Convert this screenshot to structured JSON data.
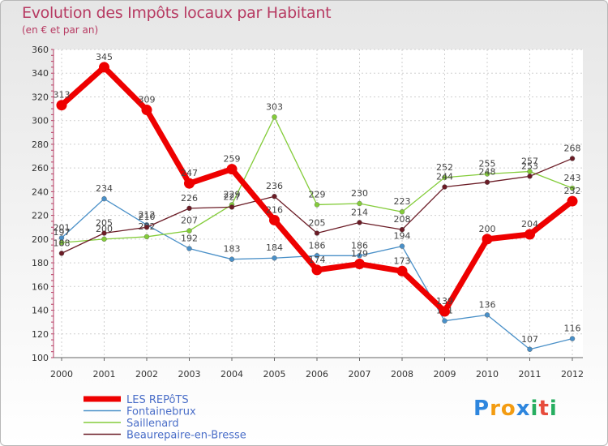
{
  "title": "Evolution des Impôts locaux par Habitant",
  "subtitle": "(en € et par an)",
  "brand": {
    "letters": [
      "P",
      "r",
      "o",
      "x",
      "i",
      "t",
      "i"
    ],
    "colors": [
      "#2e86de",
      "#f39c12",
      "#f39c12",
      "#2e86de",
      "#27ae60",
      "#e74c3c",
      "#27ae60"
    ]
  },
  "chart_data": {
    "type": "line",
    "title": "Evolution des Impôts locaux par Habitant",
    "subtitle": "(en € et par an)",
    "xlabel": "",
    "ylabel": "",
    "x": [
      "2000",
      "2001",
      "2002",
      "2003",
      "2004",
      "2005",
      "2006",
      "2007",
      "2008",
      "2009",
      "2010",
      "2011",
      "2012"
    ],
    "ylim": [
      100,
      360
    ],
    "yticks": [
      100,
      120,
      140,
      160,
      180,
      200,
      220,
      240,
      260,
      280,
      300,
      320,
      340,
      360
    ],
    "series": [
      {
        "name": "LES REPôTS",
        "color": "#ee0000",
        "values": [
          313,
          345,
          309,
          247,
          259,
          216,
          174,
          179,
          173,
          139,
          200,
          204,
          232
        ]
      },
      {
        "name": "Fontainebrux",
        "color": "#4a90c8",
        "values": [
          201,
          234,
          212,
          192,
          183,
          184,
          186,
          186,
          194,
          131,
          136,
          107,
          116
        ]
      },
      {
        "name": "Saillenard",
        "color": "#84cc3a",
        "values": [
          197,
          200,
          202,
          207,
          229,
          303,
          229,
          230,
          223,
          252,
          255,
          257,
          243
        ]
      },
      {
        "name": "Beaurepaire-en-Bresse",
        "color": "#6b1c26",
        "values": [
          188,
          205,
          210,
          226,
          227,
          236,
          205,
          214,
          208,
          244,
          248,
          253,
          268
        ]
      }
    ],
    "legend_position": "bottom-left"
  }
}
